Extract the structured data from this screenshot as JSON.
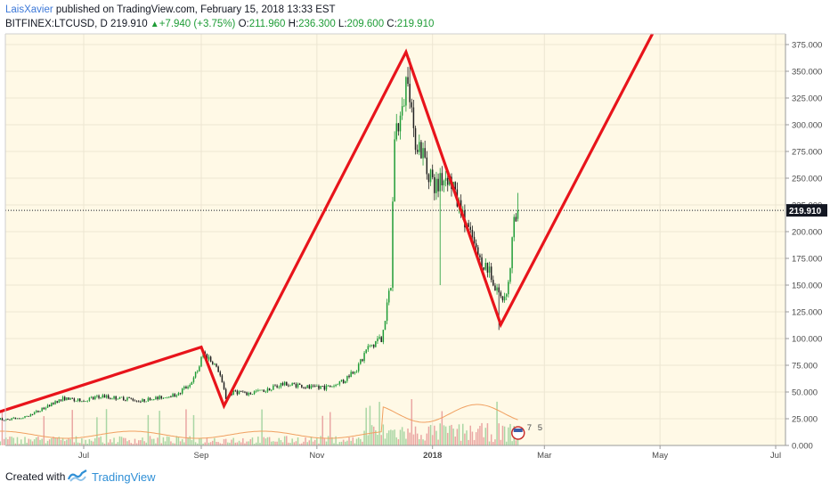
{
  "header": {
    "author": "LaisXavier",
    "published_text": " published on TradingView.com, February 15, 2018 13:33 EST",
    "symbol": "BITFINEX:LTCUSD, D",
    "last": "219.910",
    "change": "+7.940 (+3.75%)",
    "o_label": "O:",
    "o_value": "211.960",
    "h_label": "H:",
    "h_value": "236.300",
    "l_label": "L:",
    "l_value": "209.600",
    "c_label": "C:",
    "c_value": "219.910"
  },
  "footer": {
    "created_with": "Created with",
    "brand": "TradingView"
  },
  "price_label": "219.910",
  "volume_badge": "7",
  "volume_badge2": "5",
  "colors": {
    "background": "#fff9e6",
    "up": "#1e9c36",
    "down": "#202020",
    "vol_up": "#a9d6a4",
    "vol_down": "#eaa6a3",
    "pattern_line": "#e8141b",
    "ma_line": "#f0a060"
  },
  "chart_data": {
    "type": "candlestick",
    "x_tick_labels": [
      "Jul",
      "Sep",
      "Nov",
      "2018",
      "Mar",
      "May",
      "Jul"
    ],
    "x_tick_dates": [
      "2017-07-01",
      "2017-09-01",
      "2017-11-01",
      "2018-01-01",
      "2018-03-01",
      "2018-05-01",
      "2018-07-01"
    ],
    "y_tick_labels": [
      "0.000",
      "25.000",
      "50.000",
      "75.000",
      "100.000",
      "125.000",
      "150.000",
      "175.000",
      "200.000",
      "225.000",
      "250.000",
      "275.000",
      "300.000",
      "325.000",
      "350.000",
      "375.000"
    ],
    "ylim": [
      0,
      385
    ],
    "last_price": 219.91,
    "price_path": [
      [
        "2017-05-01",
        22
      ],
      [
        "2017-05-10",
        28
      ],
      [
        "2017-05-20",
        24
      ],
      [
        "2017-06-01",
        27
      ],
      [
        "2017-06-10",
        35
      ],
      [
        "2017-06-20",
        44
      ],
      [
        "2017-07-01",
        42
      ],
      [
        "2017-07-10",
        46
      ],
      [
        "2017-07-20",
        44
      ],
      [
        "2017-08-01",
        42
      ],
      [
        "2017-08-10",
        45
      ],
      [
        "2017-08-20",
        48
      ],
      [
        "2017-08-28",
        62
      ],
      [
        "2017-09-02",
        85
      ],
      [
        "2017-09-06",
        80
      ],
      [
        "2017-09-10",
        70
      ],
      [
        "2017-09-14",
        45
      ],
      [
        "2017-09-18",
        50
      ],
      [
        "2017-09-25",
        48
      ],
      [
        "2017-10-05",
        52
      ],
      [
        "2017-10-15",
        58
      ],
      [
        "2017-10-25",
        55
      ],
      [
        "2017-11-05",
        54
      ],
      [
        "2017-11-15",
        60
      ],
      [
        "2017-11-22",
        72
      ],
      [
        "2017-11-28",
        90
      ],
      [
        "2017-12-05",
        100
      ],
      [
        "2017-12-10",
        150
      ],
      [
        "2017-12-12",
        295
      ],
      [
        "2017-12-15",
        300
      ],
      [
        "2017-12-19",
        350
      ],
      [
        "2017-12-22",
        290
      ],
      [
        "2017-12-28",
        265
      ],
      [
        "2018-01-02",
        240
      ],
      [
        "2018-01-08",
        255
      ],
      [
        "2018-01-12",
        240
      ],
      [
        "2018-01-18",
        210
      ],
      [
        "2018-01-25",
        175
      ],
      [
        "2018-02-01",
        160
      ],
      [
        "2018-02-06",
        135
      ],
      [
        "2018-02-10",
        150
      ],
      [
        "2018-02-13",
        210
      ],
      [
        "2018-02-15",
        219.91
      ]
    ],
    "pattern_lines": [
      [
        [
          "2017-05-01",
          22
        ],
        [
          "2017-09-01",
          92
        ],
        [
          "2017-09-13",
          37
        ],
        [
          "2017-12-18",
          368
        ],
        [
          "2018-02-06",
          113
        ],
        [
          "2018-04-27",
          385
        ]
      ]
    ],
    "grid": true
  }
}
